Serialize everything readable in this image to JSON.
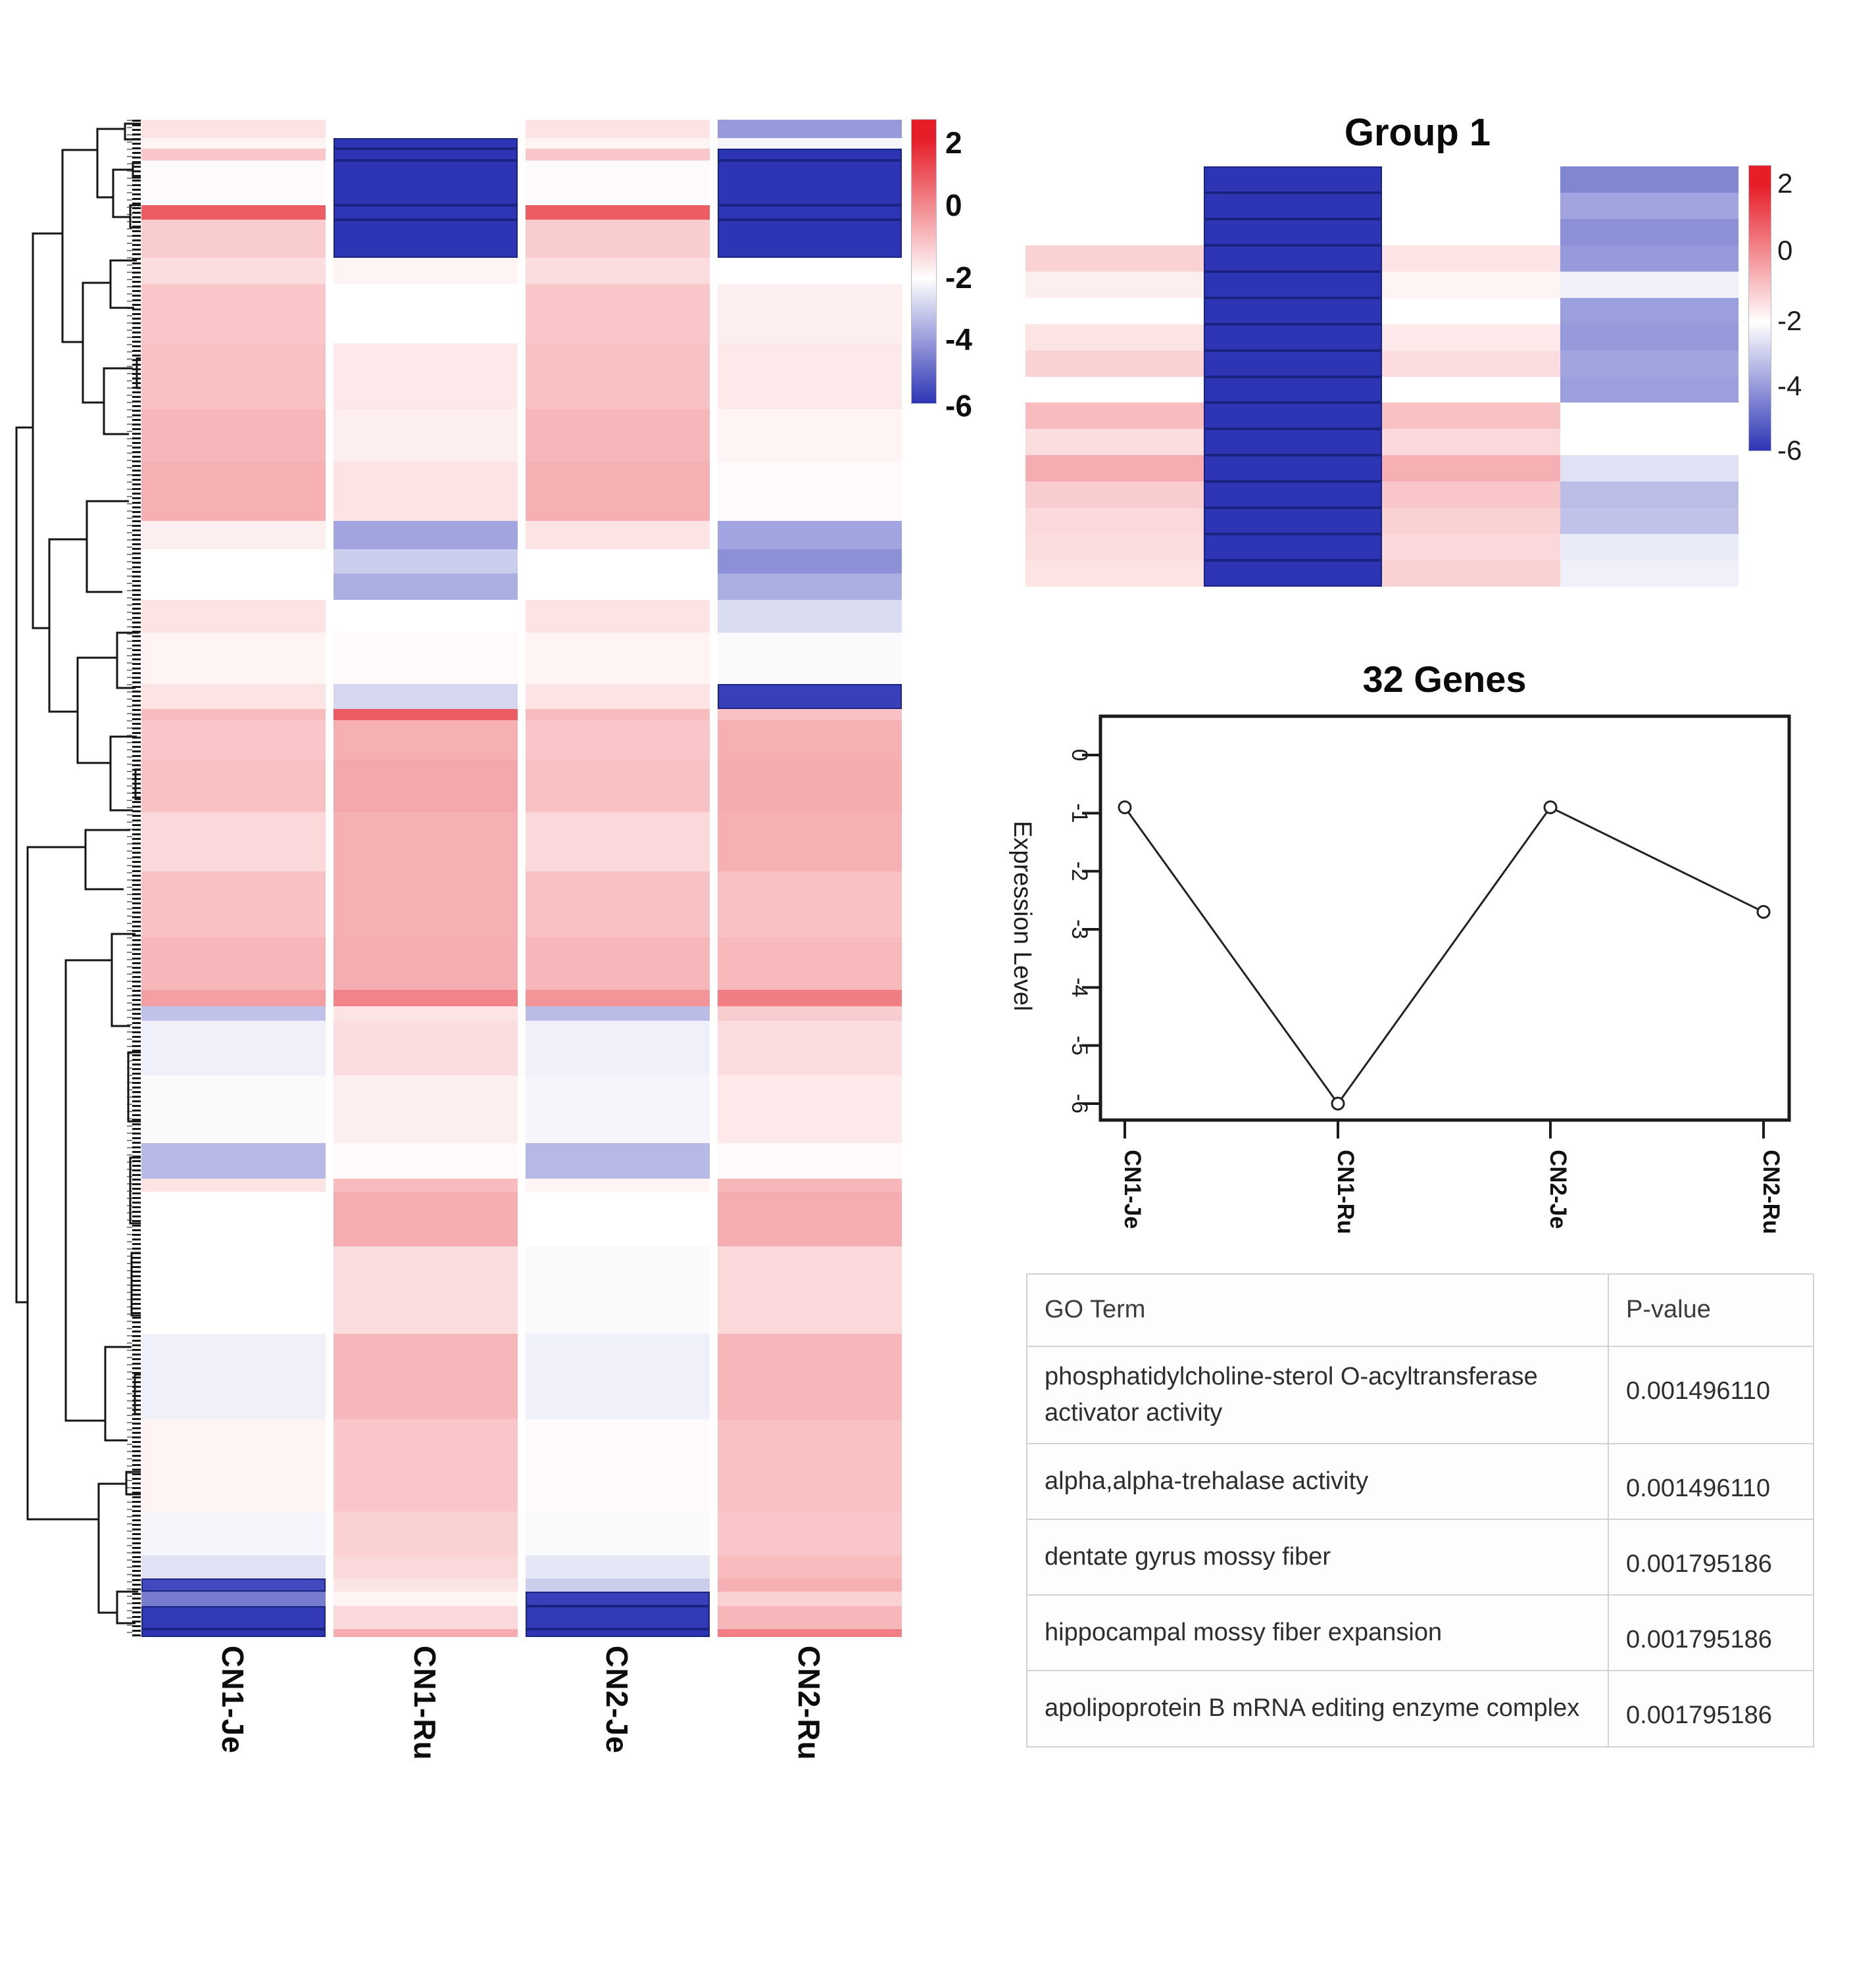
{
  "colors": {
    "heat_red": "#e61e28",
    "heat_blue": "#2d35b5",
    "heat_white": "#ffffff",
    "navy_block_edge": "#1b2380",
    "axis": "#1a1a1a",
    "dendrogram": "#151515"
  },
  "chart_data": [
    {
      "type": "heatmap",
      "name": "clustered_expression_heatmap",
      "columns": [
        "CN1-Je",
        "CN1-Ru",
        "CN2-Je",
        "CN2-Ru"
      ],
      "colorbar": {
        "ticks": [
          "2",
          "0",
          "-2",
          "-4",
          "-6"
        ],
        "domain_top": 2,
        "domain_bottom": -6,
        "white_at": -2
      },
      "rows": [
        {
          "h": 28,
          "v": [
            -1.5,
            -2.0,
            -1.5,
            -4.0
          ]
        },
        {
          "h": 16,
          "v": [
            -1.8,
            -6,
            -1.8,
            -2.2
          ]
        },
        {
          "h": 18,
          "v": [
            -1.0,
            -6,
            -1.0,
            -6
          ]
        },
        {
          "h": 68,
          "v": [
            -1.9,
            -6,
            -1.9,
            -6
          ]
        },
        {
          "h": 22,
          "v": [
            0.9,
            -6,
            0.9,
            -6
          ]
        },
        {
          "h": 58,
          "v": [
            -1.1,
            -6,
            -1.1,
            -6
          ]
        },
        {
          "h": 40,
          "v": [
            -1.4,
            -1.8,
            -1.4,
            -2.0
          ]
        },
        {
          "h": 90,
          "v": [
            -1.0,
            -2.0,
            -1.0,
            -1.7
          ]
        },
        {
          "h": 100,
          "v": [
            -0.9,
            -1.6,
            -0.9,
            -1.6
          ]
        },
        {
          "h": 80,
          "v": [
            -0.7,
            -1.7,
            -0.7,
            -1.8
          ]
        },
        {
          "h": 90,
          "v": [
            -0.6,
            -1.5,
            -0.6,
            -1.9
          ]
        },
        {
          "h": 43,
          "v": [
            -1.7,
            -3.8,
            -1.5,
            -3.8
          ]
        },
        {
          "h": 37,
          "v": [
            -2.0,
            -3.0,
            -2.0,
            -4.2
          ]
        },
        {
          "h": 40,
          "v": [
            -2.0,
            -3.6,
            -2.0,
            -3.6
          ]
        },
        {
          "h": 50,
          "v": [
            -1.5,
            -2.0,
            -1.5,
            -2.7
          ]
        },
        {
          "h": 78,
          "v": [
            -1.8,
            -1.9,
            -1.8,
            -2.1
          ]
        },
        {
          "h": 38,
          "v": [
            -1.5,
            -2.8,
            -1.5,
            -5.8
          ]
        },
        {
          "h": 17,
          "v": [
            -0.8,
            0.9,
            -0.8,
            -0.9
          ]
        },
        {
          "h": 60,
          "v": [
            -1.0,
            -0.6,
            -1.0,
            -0.6
          ]
        },
        {
          "h": 80,
          "v": [
            -0.9,
            -0.45,
            -0.9,
            -0.5
          ]
        },
        {
          "h": 90,
          "v": [
            -1.3,
            -0.6,
            -1.3,
            -0.6
          ]
        },
        {
          "h": 100,
          "v": [
            -0.9,
            -0.6,
            -0.9,
            -0.9
          ]
        },
        {
          "h": 80,
          "v": [
            -0.7,
            -0.55,
            -0.7,
            -0.75
          ]
        },
        {
          "h": 25,
          "v": [
            -0.3,
            0.2,
            -0.1,
            0.3
          ]
        },
        {
          "h": 22,
          "v": [
            -3.2,
            -1.5,
            -3.3,
            -1.1
          ]
        },
        {
          "h": 83,
          "v": [
            -2.3,
            -1.4,
            -2.3,
            -1.4
          ]
        },
        {
          "h": 103,
          "v": [
            -2.1,
            -1.7,
            -2.2,
            -1.6
          ]
        },
        {
          "h": 54,
          "v": [
            -3.4,
            -1.9,
            -3.4,
            -1.9
          ]
        },
        {
          "h": 20,
          "v": [
            -1.5,
            -0.8,
            -1.8,
            -0.7
          ]
        },
        {
          "h": 83,
          "v": [
            -2.0,
            -0.55,
            -2.0,
            -0.55
          ]
        },
        {
          "h": 133,
          "v": [
            -2.0,
            -1.4,
            -2.1,
            -1.3
          ]
        },
        {
          "h": 130,
          "v": [
            -2.3,
            -0.7,
            -2.3,
            -0.7
          ]
        },
        {
          "h": 140,
          "v": [
            -1.8,
            -1.0,
            -1.9,
            -0.9
          ]
        },
        {
          "h": 67,
          "v": [
            -2.2,
            -1.2,
            -2.1,
            -1.0
          ]
        },
        {
          "h": 35,
          "v": [
            -2.6,
            -1.3,
            -2.5,
            -0.8
          ]
        },
        {
          "h": 20,
          "v": [
            -5.6,
            -1.5,
            -3.0,
            -0.6
          ]
        },
        {
          "h": 22,
          "v": [
            -4.6,
            -1.8,
            -5.8,
            -1.2
          ]
        },
        {
          "h": 35,
          "v": [
            -5.9,
            -1.3,
            -5.9,
            -0.7
          ]
        },
        {
          "h": 12,
          "v": [
            -6,
            -0.5,
            -6,
            0.3
          ]
        }
      ]
    },
    {
      "type": "heatmap",
      "name": "group1_heatmap",
      "title": "Group 1",
      "n_cols": 4,
      "colorbar": {
        "ticks": [
          "2",
          "0",
          "-2",
          "-4",
          "-6"
        ],
        "domain_top": 2,
        "domain_bottom": -6,
        "white_at": -2
      },
      "rows": [
        {
          "v": [
            -2.0,
            -6,
            -2.0,
            -4.4
          ]
        },
        {
          "v": [
            -2.0,
            -6,
            -2.0,
            -3.8
          ]
        },
        {
          "v": [
            -2.0,
            -6,
            -2.0,
            -4.2
          ]
        },
        {
          "v": [
            -1.2,
            -6,
            -1.5,
            -4.0
          ]
        },
        {
          "v": [
            -1.7,
            -6,
            -1.8,
            -2.3
          ]
        },
        {
          "v": [
            -2.0,
            -6,
            -2.0,
            -3.9
          ]
        },
        {
          "v": [
            -1.5,
            -6,
            -1.6,
            -4.0
          ]
        },
        {
          "v": [
            -1.2,
            -6,
            -1.4,
            -3.8
          ]
        },
        {
          "v": [
            -2.0,
            -6,
            -2.0,
            -3.9
          ]
        },
        {
          "v": [
            -0.8,
            -6,
            -0.9,
            -2.0
          ]
        },
        {
          "v": [
            -1.4,
            -6,
            -1.3,
            -2.0
          ]
        },
        {
          "v": [
            -0.55,
            -6,
            -0.6,
            -2.6
          ]
        },
        {
          "v": [
            -1.1,
            -6,
            -1.0,
            -3.3
          ]
        },
        {
          "v": [
            -1.3,
            -6,
            -1.2,
            -3.2
          ]
        },
        {
          "v": [
            -1.4,
            -6,
            -1.3,
            -2.4
          ]
        },
        {
          "v": [
            -1.5,
            -6,
            -1.2,
            -2.3
          ]
        }
      ]
    },
    {
      "type": "line",
      "name": "expression_profile",
      "title": "32 Genes",
      "ylabel": "Expression Level",
      "x": [
        "CN1-Je",
        "CN1-Ru",
        "CN2-Je",
        "CN2-Ru"
      ],
      "y": [
        -0.9,
        -6.0,
        -0.9,
        -2.7
      ],
      "yticks": [
        "0",
        "-1",
        "-2",
        "-3",
        "-4",
        "-5",
        "-6"
      ],
      "ylim": [
        0,
        -6
      ],
      "grid": false
    },
    {
      "type": "table",
      "name": "go_enrichment_table",
      "headers": [
        "GO Term",
        "P-value"
      ],
      "rows": [
        [
          "phosphatidylcholine-sterol O-acyltransferase activator activity",
          "0.001496110"
        ],
        [
          "alpha,alpha-trehalase activity",
          "0.001496110"
        ],
        [
          "dentate gyrus mossy fiber",
          "0.001795186"
        ],
        [
          "hippocampal mossy fiber expansion",
          "0.001795186"
        ],
        [
          "apolipoprotein B mRNA editing enzyme complex",
          "0.001795186"
        ]
      ]
    }
  ],
  "dendrogram": {
    "brackets": [
      [
        25,
        650,
        1980,
        50,
        42
      ],
      [
        50,
        355,
        955,
        95,
        75
      ],
      [
        95,
        228,
        520,
        148,
        126
      ],
      [
        148,
        196,
        300,
        190,
        172
      ],
      [
        190,
        188,
        212,
        214,
        214
      ],
      [
        172,
        258,
        330,
        202,
        198
      ],
      [
        202,
        248,
        270,
        214,
        214
      ],
      [
        198,
        312,
        346,
        214,
        214
      ],
      [
        126,
        430,
        612,
        168,
        158
      ],
      [
        168,
        396,
        468,
        208,
        204
      ],
      [
        158,
        560,
        660,
        202,
        196
      ],
      [
        75,
        820,
        1082,
        132,
        118
      ],
      [
        132,
        762,
        900,
        196,
        186
      ],
      [
        118,
        1000,
        1160,
        178,
        168
      ],
      [
        178,
        962,
        1046,
        212,
        206
      ],
      [
        168,
        1120,
        1232,
        208,
        202
      ],
      [
        42,
        1288,
        2310,
        130,
        150
      ],
      [
        130,
        1262,
        1352,
        198,
        188
      ],
      [
        150,
        2256,
        2452,
        192,
        178
      ],
      [
        192,
        2238,
        2272,
        214,
        214
      ],
      [
        178,
        2420,
        2468,
        210,
        206
      ],
      [
        100,
        1460,
        2160,
        170,
        160
      ],
      [
        170,
        1420,
        1560,
        206,
        198
      ],
      [
        160,
        2048,
        2190,
        200,
        194
      ],
      [
        195,
        1600,
        1705,
        214,
        214
      ],
      [
        198,
        1760,
        1860,
        214,
        214
      ],
      [
        200,
        1905,
        2000,
        214,
        214
      ],
      [
        205,
        2090,
        2150,
        214,
        214
      ],
      [
        206,
        1170,
        1215,
        214,
        214
      ],
      [
        208,
        545,
        590,
        214,
        214
      ]
    ]
  }
}
